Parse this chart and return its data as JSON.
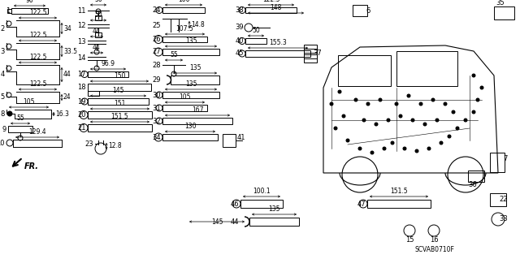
{
  "bg_color": "#ffffff",
  "fig_width": 6.4,
  "fig_height": 3.19,
  "watermark": "SCVAB0710F",
  "border_color": "#4444cc",
  "lw": 0.7,
  "fs_label": 5.5,
  "fs_num": 6.0
}
